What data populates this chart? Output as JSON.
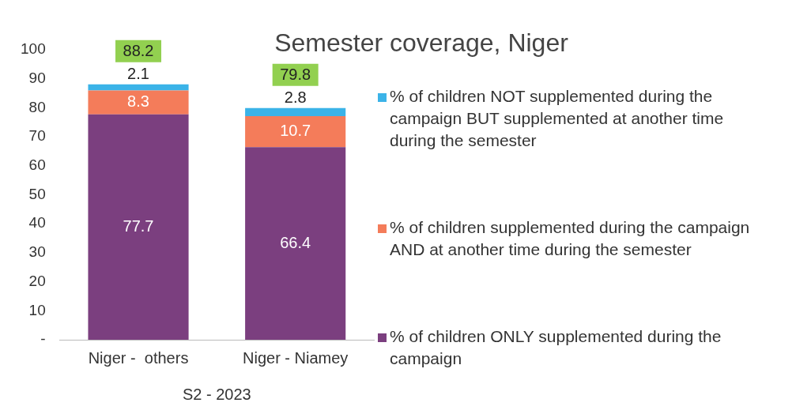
{
  "chart_data": {
    "type": "bar",
    "title": "Semester coverage, Niger",
    "categories": [
      "Niger -  others",
      "Niger - Niamey"
    ],
    "stacked": true,
    "series": [
      {
        "name": "% of children ONLY supplemented during the campaign",
        "color": "#7b3f7f",
        "values": [
          77.7,
          66.4
        ]
      },
      {
        "name": "% of children supplemented during the campaign AND at another time during the semester",
        "color": "#f47c5a",
        "values": [
          8.3,
          10.7
        ]
      },
      {
        "name": "% of children NOT supplemented during the campaign BUT supplemented at another time during the semester",
        "color": "#3bb3e8",
        "values": [
          2.1,
          2.8
        ]
      }
    ],
    "ylim": [
      0,
      100
    ],
    "yticks": [
      {
        "value": 0,
        "label": "-"
      },
      10,
      20,
      30,
      40,
      50,
      60,
      70,
      80,
      90,
      100
    ],
    "data_labels": true,
    "totals": [
      "88.2",
      "79.8"
    ],
    "annotations": [
      "S2 - 2023"
    ],
    "legend": "right",
    "grid": false
  }
}
